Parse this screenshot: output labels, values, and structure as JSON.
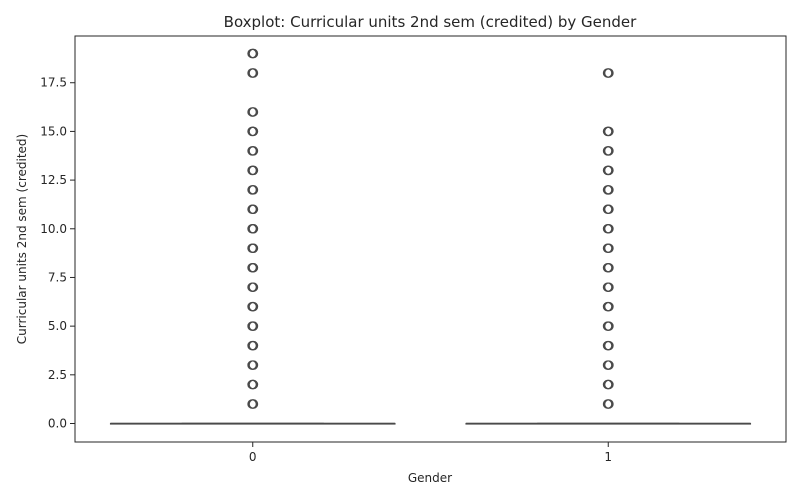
{
  "chart_data": {
    "type": "box",
    "title": "Boxplot: Curricular units 2nd sem (credited) by Gender",
    "xlabel": "Gender",
    "ylabel": "Curricular units 2nd sem (credited)",
    "categories": [
      "0",
      "1"
    ],
    "ylim": [
      -0.95,
      19.9
    ],
    "yticks": [
      0.0,
      2.5,
      5.0,
      7.5,
      10.0,
      12.5,
      15.0,
      17.5
    ],
    "ytick_labels": [
      "0.0",
      "2.5",
      "5.0",
      "7.5",
      "10.0",
      "12.5",
      "15.0",
      "17.5"
    ],
    "grid": false,
    "box_color": "#4a4a4a",
    "series": [
      {
        "category": "0",
        "min": 0,
        "q1": 0,
        "median": 0,
        "q3": 0,
        "max": 0,
        "outliers": [
          1,
          2,
          3,
          4,
          5,
          6,
          7,
          8,
          9,
          10,
          11,
          12,
          13,
          14,
          15,
          16,
          18,
          19
        ]
      },
      {
        "category": "1",
        "min": 0,
        "q1": 0,
        "median": 0,
        "q3": 0,
        "max": 0,
        "outliers": [
          1,
          2,
          3,
          4,
          5,
          6,
          7,
          8,
          9,
          10,
          11,
          12,
          13,
          14,
          15,
          18
        ]
      }
    ]
  }
}
